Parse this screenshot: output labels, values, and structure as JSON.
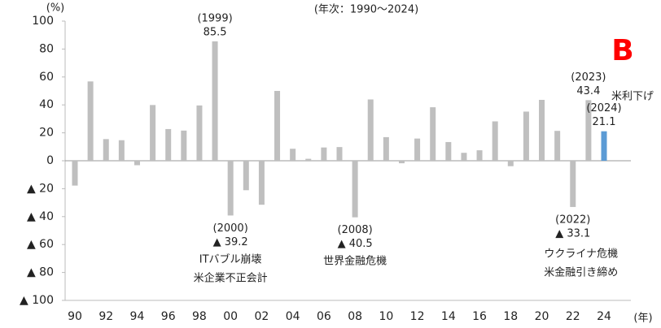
{
  "chart_data": {
    "type": "bar",
    "subtitle": "(年次：1990〜2024)",
    "y_unit": "(%)",
    "x_unit": "(年)",
    "panel_label": "B",
    "categories": [
      "90",
      null,
      "92",
      null,
      "94",
      null,
      "96",
      null,
      "98",
      null,
      "00",
      null,
      "02",
      null,
      "04",
      null,
      "06",
      null,
      "08",
      null,
      "10",
      null,
      "12",
      null,
      "14",
      null,
      "16",
      null,
      "18",
      null,
      "20",
      null,
      "22",
      null,
      "24"
    ],
    "values": [
      -17.8,
      56.8,
      15.5,
      14.7,
      -3.2,
      39.9,
      22.7,
      21.6,
      39.6,
      85.5,
      -39.2,
      -21.1,
      -31.5,
      50.0,
      8.6,
      1.4,
      9.5,
      9.8,
      -40.5,
      43.9,
      16.9,
      -1.8,
      15.9,
      38.3,
      13.4,
      5.7,
      7.5,
      28.2,
      -3.9,
      35.2,
      43.6,
      21.4,
      -33.1,
      43.4,
      21.1
    ],
    "value_labels": [
      null,
      null,
      null,
      null,
      null,
      null,
      null,
      null,
      null,
      "85.5",
      "▲ 39.2",
      null,
      null,
      null,
      null,
      null,
      null,
      null,
      "▲ 40.5",
      null,
      null,
      null,
      null,
      null,
      null,
      null,
      null,
      null,
      null,
      null,
      null,
      null,
      "▲ 33.1",
      "43.4",
      "21.1"
    ],
    "year_labels": [
      null,
      null,
      null,
      null,
      null,
      null,
      null,
      null,
      null,
      "(1999)",
      "(2000)",
      null,
      null,
      null,
      null,
      null,
      null,
      null,
      "(2008)",
      null,
      null,
      null,
      null,
      null,
      null,
      null,
      null,
      null,
      null,
      null,
      null,
      null,
      "(2022)",
      "(2023)",
      "(2024)"
    ],
    "colors": [
      "#bfbfbf",
      "#bfbfbf",
      "#bfbfbf",
      "#bfbfbf",
      "#bfbfbf",
      "#bfbfbf",
      "#bfbfbf",
      "#bfbfbf",
      "#bfbfbf",
      "#bfbfbf",
      "#bfbfbf",
      "#bfbfbf",
      "#bfbfbf",
      "#bfbfbf",
      "#bfbfbf",
      "#bfbfbf",
      "#bfbfbf",
      "#bfbfbf",
      "#bfbfbf",
      "#bfbfbf",
      "#bfbfbf",
      "#bfbfbf",
      "#bfbfbf",
      "#bfbfbf",
      "#bfbfbf",
      "#bfbfbf",
      "#bfbfbf",
      "#bfbfbf",
      "#bfbfbf",
      "#bfbfbf",
      "#bfbfbf",
      "#bfbfbf",
      "#bfbfbf",
      "#bfbfbf",
      "#5b9bd5"
    ],
    "annotations": [
      {
        "lines": [
          "ITバブル崩壊",
          "米企業不正会計"
        ]
      },
      {
        "lines": [
          "世界金融危機"
        ]
      },
      {
        "lines": [
          "ウクライナ危機",
          "米金融引き締め"
        ]
      },
      {
        "lines": [
          "米利下げ"
        ]
      }
    ],
    "ylim": [
      -100,
      100
    ],
    "yticks": [
      {
        "value": -100,
        "label": "▲ 100"
      },
      {
        "value": -80,
        "label": "▲ 80"
      },
      {
        "value": -60,
        "label": "▲ 60"
      },
      {
        "value": -40,
        "label": "▲ 40"
      },
      {
        "value": -20,
        "label": "▲ 20"
      },
      0,
      20,
      40,
      60,
      80,
      100
    ]
  }
}
